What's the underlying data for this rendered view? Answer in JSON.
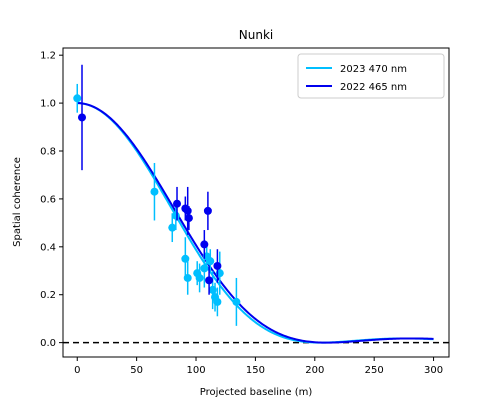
{
  "chart_data": {
    "type": "scatter",
    "title": "Nunki",
    "xlabel": "Projected baseline (m)",
    "ylabel": "Spatial coherence",
    "xlim": [
      -12,
      313
    ],
    "ylim": [
      -0.06,
      1.23
    ],
    "xticks": [
      0,
      50,
      100,
      150,
      200,
      250,
      300
    ],
    "yticks": [
      0.0,
      0.2,
      0.4,
      0.6,
      0.8,
      1.0,
      1.2
    ],
    "grid": false,
    "legend_position": "top-right",
    "reference_line": {
      "y": 0.0,
      "style": "dashed",
      "color": "#000000"
    },
    "series": [
      {
        "name": "2023 470 nm",
        "color": "#00bfff",
        "model_first_zero": 205,
        "model_x_range": [
          0,
          300
        ],
        "points": [
          {
            "x": 0,
            "y": 1.02,
            "err": 0.06
          },
          {
            "x": 65,
            "y": 0.63,
            "err": 0.12
          },
          {
            "x": 80,
            "y": 0.48,
            "err": 0.06
          },
          {
            "x": 83,
            "y": 0.53,
            "err": 0.06
          },
          {
            "x": 91,
            "y": 0.35,
            "err": 0.09
          },
          {
            "x": 93,
            "y": 0.27,
            "err": 0.07
          },
          {
            "x": 101,
            "y": 0.29,
            "err": 0.05
          },
          {
            "x": 103,
            "y": 0.27,
            "err": 0.06
          },
          {
            "x": 107,
            "y": 0.31,
            "err": 0.08
          },
          {
            "x": 109,
            "y": 0.36,
            "err": 0.06
          },
          {
            "x": 112,
            "y": 0.34,
            "err": 0.05
          },
          {
            "x": 114,
            "y": 0.22,
            "err": 0.08
          },
          {
            "x": 116,
            "y": 0.19,
            "err": 0.06
          },
          {
            "x": 118,
            "y": 0.17,
            "err": 0.06
          },
          {
            "x": 120,
            "y": 0.29,
            "err": 0.09
          },
          {
            "x": 134,
            "y": 0.17,
            "err": 0.1
          }
        ]
      },
      {
        "name": "2022 465 nm",
        "color": "#0000ee",
        "model_first_zero": 210,
        "model_x_range": [
          0,
          300
        ],
        "points": [
          {
            "x": 4,
            "y": 0.94,
            "err": 0.22
          },
          {
            "x": 84,
            "y": 0.58,
            "err": 0.07
          },
          {
            "x": 91,
            "y": 0.56,
            "err": 0.05
          },
          {
            "x": 93,
            "y": 0.55,
            "err": 0.1
          },
          {
            "x": 94,
            "y": 0.52,
            "err": 0.05
          },
          {
            "x": 107,
            "y": 0.41,
            "err": 0.06
          },
          {
            "x": 110,
            "y": 0.55,
            "err": 0.08
          },
          {
            "x": 111,
            "y": 0.26,
            "err": 0.06
          },
          {
            "x": 118,
            "y": 0.32,
            "err": 0.07
          }
        ]
      }
    ]
  }
}
